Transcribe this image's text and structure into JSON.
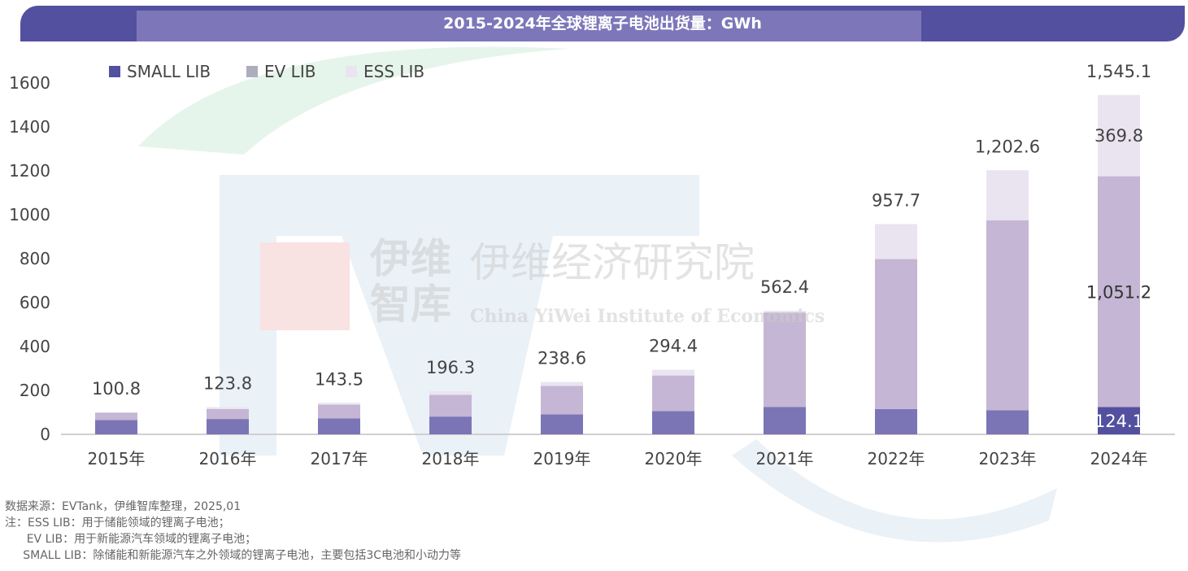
{
  "header": {
    "title": "2015-2024年全球锂离子电池出货量：GWh"
  },
  "watermark": {
    "logo_text": "伊维智库",
    "name_cn": "伊维经济研究院",
    "name_en": "China YiWei Institute of Economics",
    "brand": "EVTank"
  },
  "chart_data": {
    "type": "bar",
    "stacked": true,
    "title": "2015-2024年全球锂离子电池出货量：GWh",
    "categories": [
      "2015年",
      "2016年",
      "2017年",
      "2018年",
      "2019年",
      "2020年",
      "2021年",
      "2022年",
      "2023年",
      "2024年"
    ],
    "series": [
      {
        "name": "SMALL LIB",
        "color": "#7B75B5",
        "values": [
          65,
          70,
          73,
          81,
          91,
          106,
          125,
          115,
          110,
          124.1
        ]
      },
      {
        "name": "EV LIB",
        "color": "#C4B6D4",
        "values": [
          33.5,
          45,
          62,
          99,
          130,
          162,
          430,
          683,
          865,
          1051.2
        ]
      },
      {
        "name": "ESS LIB",
        "color": "#EAE4F0",
        "values": [
          2.3,
          8.8,
          8.5,
          16.3,
          17.6,
          26.4,
          7.4,
          159.7,
          227.6,
          369.8
        ]
      }
    ],
    "totals": [
      "100.8",
      "123.8",
      "143.5",
      "196.3",
      "238.6",
      "294.4",
      "562.4",
      "957.7",
      "1,202.6",
      "1,545.1"
    ],
    "segment_labels_2024": {
      "SMALL LIB": "124.1",
      "EV LIB": "1,051.2",
      "ESS LIB": "369.8"
    },
    "yticks": [
      "0",
      "200",
      "400",
      "600",
      "800",
      "1000",
      "1200",
      "1400",
      "1600"
    ],
    "ylim": [
      0,
      1600
    ],
    "xlabel": "",
    "ylabel": "",
    "grid": false,
    "legend": "top-left"
  },
  "notes": [
    "数据来源：EVTank，伊维智库整理，2025,01",
    "注：ESS LIB：用于储能领域的锂离子电池；",
    "      EV LIB：用于新能源汽车领域的锂离子电池；",
    "     SMALL LIB：除储能和新能源汽车之外领域的锂离子电池，主要包括3C电池和小动力等"
  ]
}
